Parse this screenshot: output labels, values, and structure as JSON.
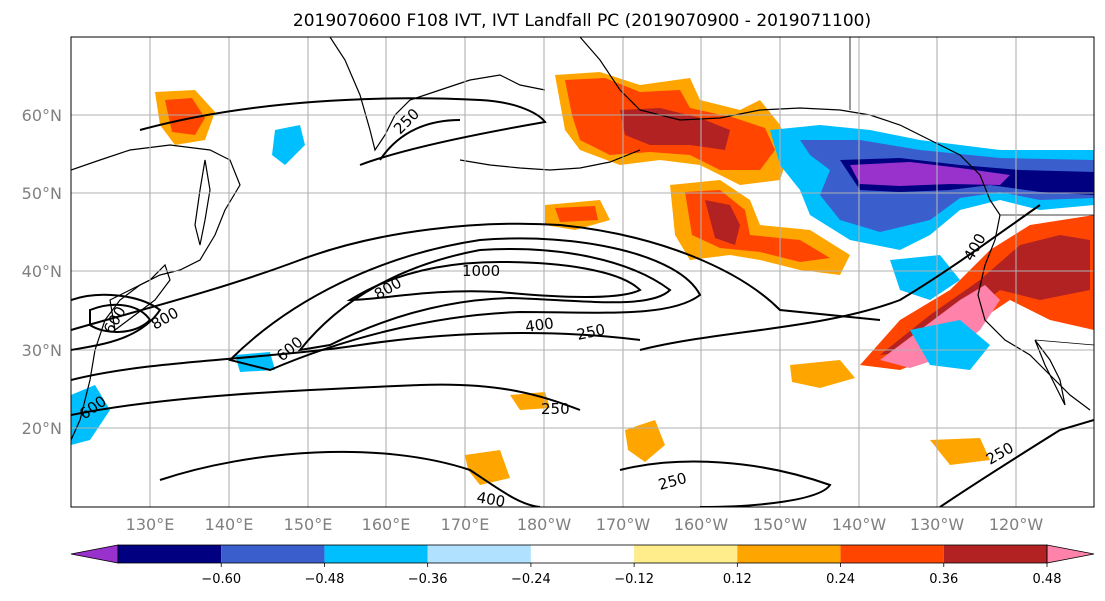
{
  "title": "2019070600 F108 IVT, IVT Landfall PC (2019070900 - 2019071100)",
  "lat_labels": [
    "60°N",
    "50°N",
    "40°N",
    "30°N",
    "20°N"
  ],
  "lon_labels": [
    "130°E",
    "140°E",
    "150°E",
    "160°E",
    "170°E",
    "180°W",
    "170°W",
    "160°W",
    "150°W",
    "140°W",
    "130°W",
    "120°W"
  ],
  "contour_labels": [
    "250",
    "1000",
    "800",
    "600",
    "400",
    "250",
    "250",
    "400",
    "250",
    "250",
    "400",
    "600",
    "600",
    "800"
  ],
  "colorbar": {
    "colors": [
      "#9932cc",
      "#000080",
      "#3a5fcd",
      "#00bfff",
      "#b0e2ff",
      "#ffffff",
      "#ffec8b",
      "#ffa500",
      "#ff4500",
      "#b22222",
      "#ff82ab"
    ],
    "tick_labels": [
      "−0.60",
      "−0.48",
      "−0.36",
      "−0.24",
      "−0.12",
      "0.12",
      "0.24",
      "0.36",
      "0.48",
      "0.60"
    ]
  },
  "colors": {
    "very_positive": "#ff82ab",
    "strong_positive": "#b22222",
    "positive": "#ff4500",
    "moderate_positive": "#ffa500",
    "weak_positive": "#ffec8b",
    "weak_negative": "#b0e2ff",
    "moderate_negative": "#00bfff",
    "negative": "#3a5fcd",
    "strong_negative": "#000080",
    "very_negative": "#9932cc"
  }
}
